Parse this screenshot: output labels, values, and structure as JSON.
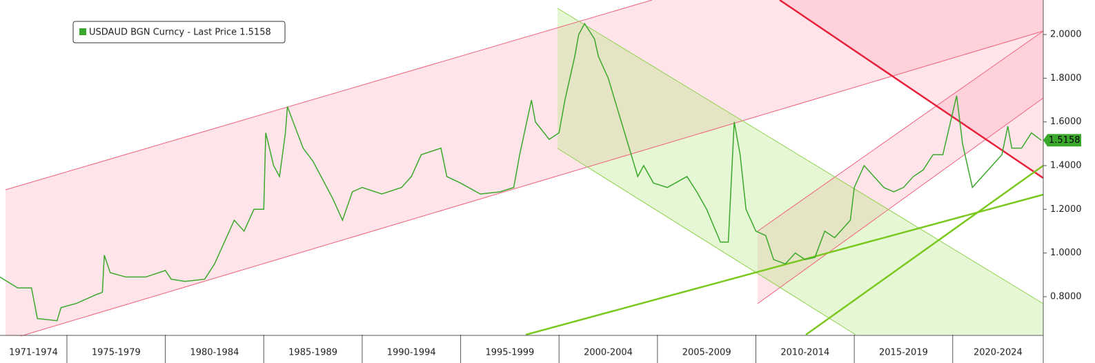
{
  "chart_data": {
    "type": "line",
    "series": [
      {
        "name": "USDAUD BGN Curncy - Last Price 1.5158",
        "color": "#3aa82a",
        "x": [
          1971.6,
          1972.5,
          1973.2,
          1973.5,
          1974.5,
          1974.7,
          1975.5,
          1976.5,
          1976.8,
          1976.9,
          1977.2,
          1978,
          1979,
          1980,
          1980.3,
          1981,
          1982,
          1982.5,
          1983,
          1983.5,
          1984,
          1984.5,
          1985,
          1985.1,
          1985.5,
          1985.8,
          1986.1,
          1986.2,
          1987,
          1987.5,
          1988.5,
          1989,
          1989.5,
          1990,
          1991,
          1992,
          1992.5,
          1993,
          1994,
          1994.3,
          1995,
          1996,
          1997,
          1997.7,
          1998,
          1998.6,
          1998.8,
          1999.5,
          2000,
          2000.3,
          2000.8,
          2001,
          2001.3,
          2001.8,
          2002,
          2002.5,
          2003,
          2003.5,
          2004,
          2004.3,
          2004.8,
          2005.5,
          2006.5,
          2007,
          2007.5,
          2008.2,
          2008.6,
          2008.9,
          2009.2,
          2009.5,
          2010,
          2010.5,
          2010.9,
          2011.5,
          2012,
          2012.5,
          2013,
          2013.5,
          2014,
          2014.8,
          2015,
          2015.5,
          2016,
          2016.5,
          2017,
          2017.5,
          2018,
          2018.5,
          2019,
          2019.5,
          2020.2,
          2020.5,
          2020.8,
          2021,
          2021.5,
          2022,
          2022.5,
          2022.8,
          2023,
          2023.5,
          2024,
          2024.5
        ],
        "values": [
          0.89,
          0.84,
          0.84,
          0.7,
          0.69,
          0.75,
          0.77,
          0.81,
          0.82,
          0.99,
          0.91,
          0.89,
          0.89,
          0.92,
          0.88,
          0.87,
          0.88,
          0.95,
          1.05,
          1.15,
          1.1,
          1.2,
          1.2,
          1.55,
          1.4,
          1.35,
          1.55,
          1.67,
          1.48,
          1.42,
          1.25,
          1.15,
          1.28,
          1.3,
          1.27,
          1.3,
          1.35,
          1.45,
          1.48,
          1.35,
          1.32,
          1.27,
          1.28,
          1.3,
          1.45,
          1.7,
          1.6,
          1.52,
          1.55,
          1.7,
          1.9,
          2.0,
          2.05,
          1.98,
          1.9,
          1.8,
          1.65,
          1.5,
          1.35,
          1.4,
          1.32,
          1.3,
          1.35,
          1.28,
          1.2,
          1.05,
          1.05,
          1.6,
          1.45,
          1.2,
          1.1,
          1.08,
          0.97,
          0.95,
          1.0,
          0.97,
          0.98,
          1.1,
          1.07,
          1.15,
          1.3,
          1.4,
          1.35,
          1.3,
          1.28,
          1.3,
          1.35,
          1.38,
          1.45,
          1.45,
          1.72,
          1.5,
          1.38,
          1.3,
          1.35,
          1.4,
          1.45,
          1.58,
          1.48,
          1.48,
          1.55,
          1.5158
        ]
      }
    ],
    "last_price": 1.5158,
    "xlim": [
      1971.6,
      2024.6
    ],
    "xticks": [
      {
        "value": 1971,
        "label": "1971-1974"
      },
      {
        "value": 1975,
        "label": "1975-1979"
      },
      {
        "value": 1980,
        "label": "1980-1984"
      },
      {
        "value": 1985,
        "label": "1985-1989"
      },
      {
        "value": 1990,
        "label": "1990-1994"
      },
      {
        "value": 1995,
        "label": "1995-1999"
      },
      {
        "value": 2000,
        "label": "2000-2004"
      },
      {
        "value": 2005,
        "label": "2005-2009"
      },
      {
        "value": 2010,
        "label": "2010-2014"
      },
      {
        "value": 2015,
        "label": "2015-2019"
      },
      {
        "value": 2020,
        "label": "2020-2024"
      }
    ],
    "ylim": [
      0.626,
      2.158
    ],
    "yticks": [
      {
        "value": 0.8,
        "label": "0.8000"
      },
      {
        "value": 1.0,
        "label": "1.0000"
      },
      {
        "value": 1.2,
        "label": "1.2000"
      },
      {
        "value": 1.4,
        "label": "1.4000"
      },
      {
        "value": 1.6,
        "label": "1.6000"
      },
      {
        "value": 1.8,
        "label": "1.8000"
      },
      {
        "value": 2.0,
        "label": "2.0000"
      }
    ]
  }
}
